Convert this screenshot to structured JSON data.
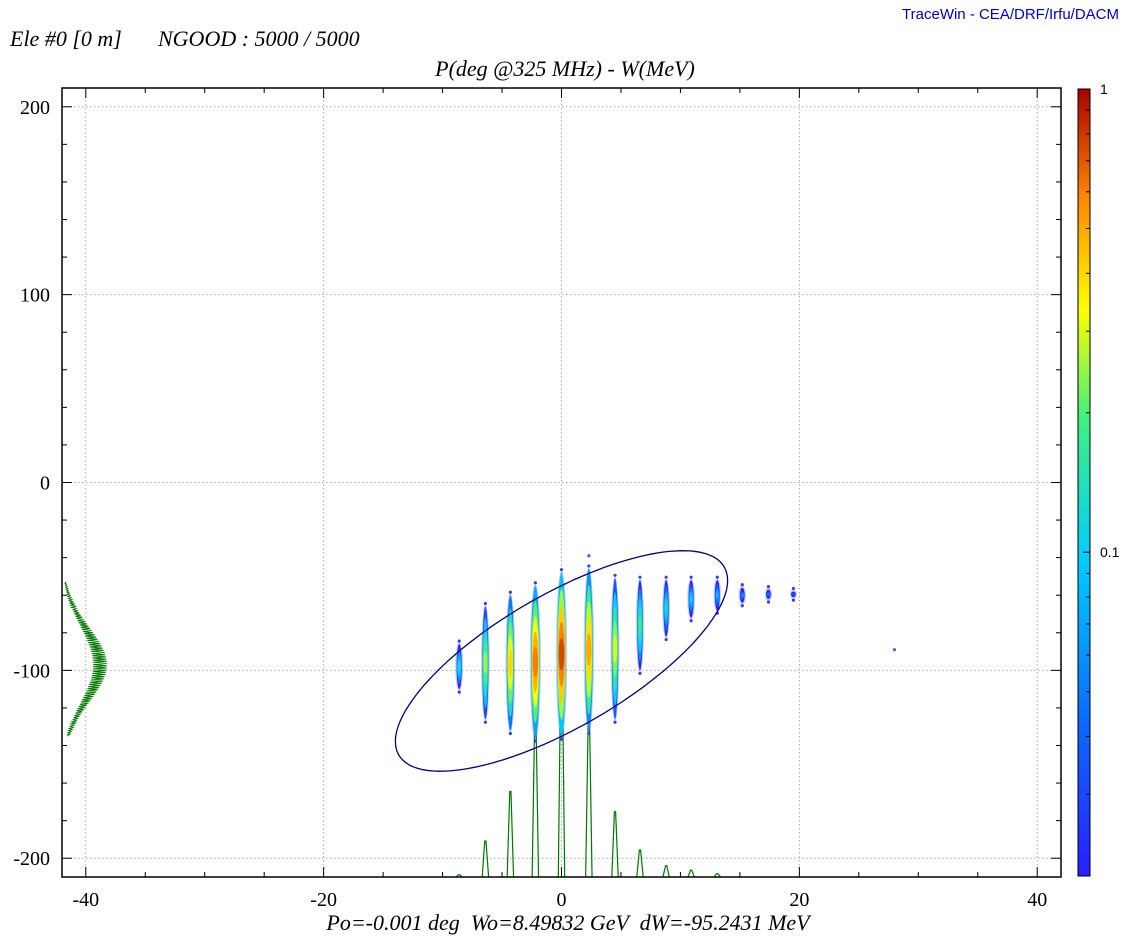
{
  "header": {
    "credit": "TraceWin - CEA/DRF/Irfu/DACM",
    "element": "Ele #0 [0 m]",
    "ngood": "NGOOD : 5000 / 5000"
  },
  "chart_data": {
    "type": "heatmap",
    "title": "P(deg @325 MHz) - W(MeV)",
    "footer": "Po=-0.001 deg  Wo=8.49832 GeV  dW=-95.2431 MeV",
    "xlim": [
      -42,
      42
    ],
    "ylim": [
      -210,
      210
    ],
    "xticks": [
      -40,
      -20,
      0,
      20,
      40
    ],
    "yticks": [
      200,
      100,
      0,
      -100,
      -200
    ],
    "grid": true,
    "colorbar": {
      "min": 0.02,
      "max": 1,
      "labels": [
        "1",
        "0.1"
      ],
      "label_values": [
        1,
        0.1
      ],
      "scale": "log"
    },
    "colors": {
      "projection": "#007700",
      "ellipse": "#000080",
      "axes": "#000000",
      "credit": "#0000cc"
    },
    "ellipse": {
      "cx": 0,
      "cy": -95,
      "semi_major": 15.8,
      "semi_minor": 5.6,
      "angle_deg": 30
    },
    "bunches": [
      {
        "x": -8.6,
        "ymin": -110,
        "ymax": -86,
        "peak": 0.12
      },
      {
        "x": -6.4,
        "ymin": -126,
        "ymax": -66,
        "peak": 0.25
      },
      {
        "x": -4.3,
        "ymin": -132,
        "ymax": -60,
        "peak": 0.4
      },
      {
        "x": -2.2,
        "ymin": -136,
        "ymax": -55,
        "peak": 0.6
      },
      {
        "x": 0.0,
        "ymin": -135,
        "ymax": -48,
        "peak": 0.75
      },
      {
        "x": 2.3,
        "ymin": -132,
        "ymax": -46,
        "peak": 0.5
      },
      {
        "x": 4.5,
        "ymin": -126,
        "ymax": -51,
        "peak": 0.3
      },
      {
        "x": 6.6,
        "ymin": -100,
        "ymax": -52,
        "peak": 0.18
      },
      {
        "x": 8.8,
        "ymin": -82,
        "ymax": -52,
        "peak": 0.12
      },
      {
        "x": 10.9,
        "ymin": -72,
        "ymax": -52,
        "peak": 0.1
      },
      {
        "x": 13.1,
        "ymin": -68,
        "ymax": -52,
        "peak": 0.08
      },
      {
        "x": 15.2,
        "ymin": -64,
        "ymax": -56,
        "peak": 0.06
      },
      {
        "x": 17.4,
        "ymin": -62,
        "ymax": -57,
        "peak": 0.05
      },
      {
        "x": 19.5,
        "ymin": -61,
        "ymax": -58,
        "peak": 0.04
      }
    ],
    "outliers": [
      {
        "x": 28.0,
        "y": -89
      },
      {
        "x": 2.3,
        "y": -39
      }
    ],
    "x_projection": [
      {
        "x": -8.6,
        "h": 0.01
      },
      {
        "x": -6.4,
        "h": 0.16
      },
      {
        "x": -4.3,
        "h": 0.38
      },
      {
        "x": -2.2,
        "h": 0.72
      },
      {
        "x": 0.0,
        "h": 1.0
      },
      {
        "x": 2.3,
        "h": 0.72
      },
      {
        "x": 4.5,
        "h": 0.29
      },
      {
        "x": 6.6,
        "h": 0.12
      },
      {
        "x": 8.8,
        "h": 0.05
      },
      {
        "x": 10.9,
        "h": 0.03
      },
      {
        "x": 13.1,
        "h": 0.015
      }
    ],
    "y_projection": {
      "ymin": -135,
      "ymax": -53,
      "center": -97,
      "sigma": 20,
      "amplitude": 0.38
    }
  }
}
